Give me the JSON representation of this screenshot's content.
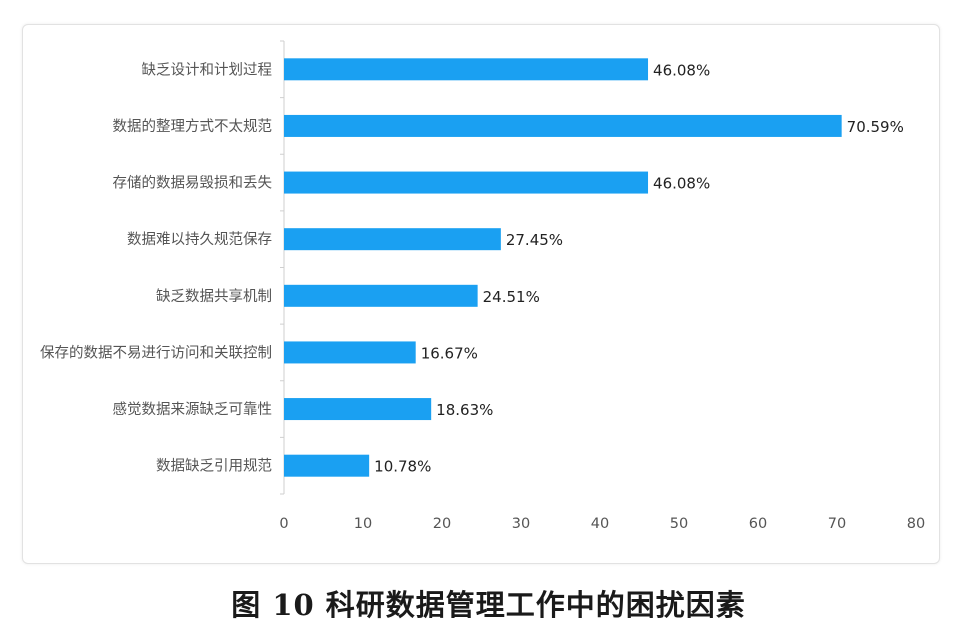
{
  "caption": "图 10   科研数据管理工作中的困扰因素",
  "chart_data": {
    "type": "bar",
    "orientation": "horizontal",
    "categories": [
      "缺乏设计和计划过程",
      "数据的整理方式不太规范",
      "存储的数据易毁损和丢失",
      "数据难以持久规范保存",
      "缺乏数据共享机制",
      "保存的数据不易进行访问和关联控制",
      "感觉数据来源缺乏可靠性",
      "数据缺乏引用规范"
    ],
    "values": [
      46.08,
      70.59,
      46.08,
      27.45,
      24.51,
      16.67,
      18.63,
      10.78
    ],
    "data_labels": [
      "46.08%",
      "70.59%",
      "46.08%",
      "27.45%",
      "24.51%",
      "16.67%",
      "18.63%",
      "10.78%"
    ],
    "xlim": [
      0,
      80
    ],
    "x_ticks": [
      "0",
      "10",
      "20",
      "30",
      "40",
      "50",
      "60",
      "70",
      "80"
    ],
    "bar_color": "#1aa0f2",
    "title": "",
    "xlabel": "",
    "ylabel": ""
  }
}
